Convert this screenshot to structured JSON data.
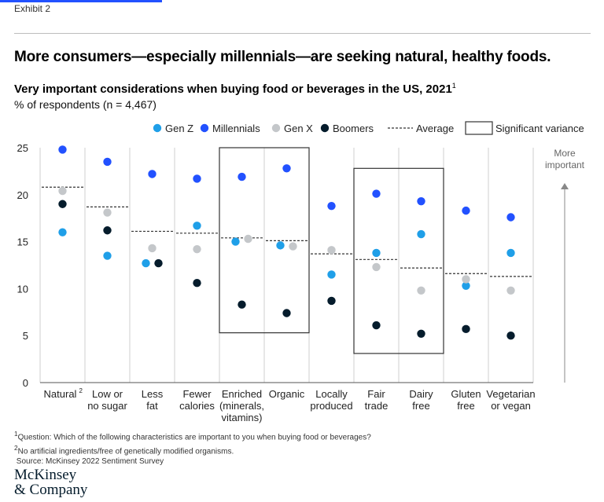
{
  "exhibit_label": "Exhibit 2",
  "headline": "More consumers—especially millennials—are seeking natural, healthy foods.",
  "footnotes": [
    {
      "marker": "1",
      "text": "Question: Which of the following characteristics are important to you when buying food or beverages?"
    },
    {
      "marker": "2",
      "text": "No artificial ingredients/free of genetically modified organisms."
    },
    {
      "marker": "",
      "text": "Source: McKinsey 2022 Sentiment Survey"
    }
  ],
  "logo": {
    "line1": "McKinsey",
    "line2": "& Company"
  },
  "colors": {
    "gen_z": "#1f9fe8",
    "millennials": "#2251ff",
    "gen_x": "#c4c7ca",
    "boomers": "#051c2c",
    "average_line": "#333333",
    "grid": "#cfcfcf",
    "accent_bar": "#2251ff"
  },
  "chart_data": {
    "type": "scatter",
    "title": "Very important considerations when buying food or beverages in the US, 2021",
    "title_note": "1",
    "ylabel": "% of respondents (n = 4,467)",
    "ylim": [
      0,
      25
    ],
    "yticks": [
      0,
      5,
      10,
      15,
      20,
      25
    ],
    "y_annotation": [
      "More",
      "important"
    ],
    "legend_position": "top-right",
    "legend": {
      "gen_z": "Gen Z",
      "millennials": "Millennials",
      "gen_x": "Gen X",
      "boomers": "Boomers",
      "average": "Average",
      "variance": "Significant variance"
    },
    "categories": [
      {
        "label": [
          "Natural"
        ],
        "note": "2"
      },
      {
        "label": [
          "Low or",
          "no sugar"
        ]
      },
      {
        "label": [
          "Less",
          "fat"
        ]
      },
      {
        "label": [
          "Fewer",
          "calories"
        ]
      },
      {
        "label": [
          "Enriched",
          "(minerals,",
          "vitamins)"
        ]
      },
      {
        "label": [
          "Organic"
        ]
      },
      {
        "label": [
          "Locally",
          "produced"
        ]
      },
      {
        "label": [
          "Fair",
          "trade"
        ]
      },
      {
        "label": [
          "Dairy",
          "free"
        ]
      },
      {
        "label": [
          "Gluten",
          "free"
        ]
      },
      {
        "label": [
          "Vegetarian",
          "or vegan"
        ]
      }
    ],
    "series": [
      {
        "name": "Gen Z",
        "key": "gen_z",
        "values": [
          16.0,
          13.5,
          12.7,
          16.7,
          15.0,
          14.6,
          11.5,
          13.8,
          15.8,
          10.3,
          13.8
        ]
      },
      {
        "name": "Millennials",
        "key": "millennials",
        "values": [
          24.8,
          23.5,
          22.2,
          21.7,
          21.9,
          22.8,
          18.8,
          20.1,
          19.3,
          18.3,
          17.6
        ]
      },
      {
        "name": "Gen X",
        "key": "gen_x",
        "values": [
          20.4,
          18.1,
          14.3,
          14.2,
          15.3,
          14.5,
          14.1,
          12.3,
          9.8,
          11.0,
          9.8
        ]
      },
      {
        "name": "Boomers",
        "key": "boomers",
        "values": [
          19.0,
          16.2,
          12.7,
          10.6,
          8.3,
          7.4,
          8.7,
          6.1,
          5.2,
          5.7,
          5.0
        ]
      }
    ],
    "average": [
      20.8,
      18.7,
      16.1,
      15.9,
      15.4,
      15.1,
      13.7,
      13.1,
      12.2,
      11.6,
      11.3
    ],
    "significant_variance_groups": [
      {
        "from_index": 4,
        "to_index": 5,
        "y_range": [
          5.3,
          25.0
        ]
      },
      {
        "from_index": 7,
        "to_index": 8,
        "y_range": [
          3.1,
          22.8
        ]
      }
    ]
  }
}
